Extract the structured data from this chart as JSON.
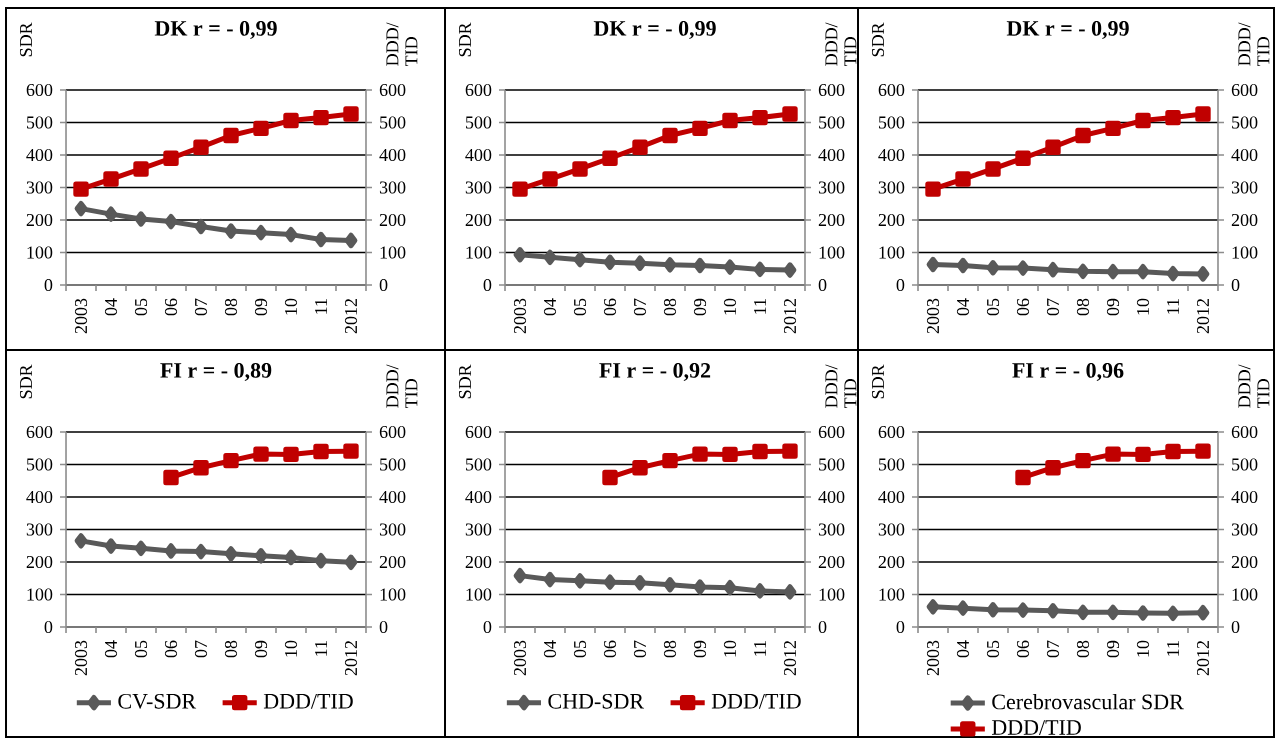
{
  "chart_data": [
    {
      "type": "line",
      "title": "DK  r = - 0,99",
      "ylabel": "SDR",
      "y2label": "DDD/ TID",
      "categories": [
        "2003",
        "04",
        "05",
        "06",
        "07",
        "08",
        "09",
        "10",
        "11",
        "2012"
      ],
      "ylim": [
        0,
        600
      ],
      "yticks": [
        0,
        100,
        200,
        300,
        400,
        500,
        600
      ],
      "y2lim": [
        0,
        600
      ],
      "y2ticks": [
        0,
        100,
        200,
        300,
        400,
        500,
        600
      ],
      "grid": "y",
      "series": [
        {
          "color": "#595959",
          "marker": "diamond",
          "values": [
            235,
            218,
            203,
            195,
            180,
            166,
            161,
            155,
            140,
            137
          ]
        },
        {
          "color": "#c00000",
          "marker": "square",
          "axis": "y2",
          "values": [
            295,
            326,
            357,
            390,
            424,
            460,
            482,
            506,
            515,
            526
          ]
        }
      ]
    },
    {
      "type": "line",
      "title": "DK r = - 0,99",
      "ylabel": "SDR",
      "y2label": "DDD/ TID",
      "categories": [
        "2003",
        "04",
        "05",
        "06",
        "07",
        "08",
        "09",
        "10",
        "11",
        "2012"
      ],
      "ylim": [
        0,
        600
      ],
      "yticks": [
        0,
        100,
        200,
        300,
        400,
        500,
        600
      ],
      "y2lim": [
        0,
        600
      ],
      "y2ticks": [
        0,
        100,
        200,
        300,
        400,
        500,
        600
      ],
      "grid": "y",
      "series": [
        {
          "color": "#595959",
          "marker": "diamond",
          "values": [
            93,
            85,
            78,
            70,
            67,
            62,
            60,
            55,
            48,
            46
          ]
        },
        {
          "color": "#c00000",
          "marker": "square",
          "axis": "y2",
          "values": [
            295,
            326,
            357,
            390,
            424,
            460,
            482,
            506,
            515,
            526
          ]
        }
      ]
    },
    {
      "type": "line",
      "title": "DK r = - 0,99",
      "ylabel": "SDR",
      "y2label": "DDD/ TID",
      "categories": [
        "2003",
        "04",
        "05",
        "06",
        "07",
        "08",
        "09",
        "10",
        "11",
        "2012"
      ],
      "ylim": [
        0,
        600
      ],
      "yticks": [
        0,
        100,
        200,
        300,
        400,
        500,
        600
      ],
      "y2lim": [
        0,
        600
      ],
      "y2ticks": [
        0,
        100,
        200,
        300,
        400,
        500,
        600
      ],
      "grid": "y",
      "series": [
        {
          "color": "#595959",
          "marker": "diamond",
          "values": [
            63,
            60,
            53,
            52,
            47,
            42,
            41,
            41,
            35,
            34
          ]
        },
        {
          "color": "#c00000",
          "marker": "square",
          "axis": "y2",
          "values": [
            295,
            326,
            357,
            390,
            424,
            460,
            482,
            506,
            515,
            526
          ]
        }
      ]
    },
    {
      "type": "line",
      "title": "FI r = - 0,89",
      "ylabel": "SDR",
      "y2label": "DDD/ TID",
      "categories": [
        "2003",
        "04",
        "05",
        "06",
        "07",
        "08",
        "09",
        "10",
        "11",
        "2012"
      ],
      "ylim": [
        0,
        600
      ],
      "yticks": [
        0,
        100,
        200,
        300,
        400,
        500,
        600
      ],
      "y2lim": [
        0,
        600
      ],
      "y2ticks": [
        0,
        100,
        200,
        300,
        400,
        500,
        600
      ],
      "grid": "y",
      "legend": "bottom",
      "series": [
        {
          "name": "CV-SDR",
          "color": "#595959",
          "marker": "diamond",
          "values": [
            265,
            249,
            242,
            234,
            232,
            225,
            219,
            214,
            204,
            199
          ]
        },
        {
          "name": "DDD/TID",
          "color": "#c00000",
          "marker": "square",
          "axis": "y2",
          "values": [
            null,
            null,
            null,
            460,
            490,
            512,
            532,
            531,
            540,
            541
          ]
        }
      ]
    },
    {
      "type": "line",
      "title": "FI  r = - 0,92",
      "ylabel": "SDR",
      "y2label": "DDD/ TID",
      "categories": [
        "2003",
        "04",
        "05",
        "06",
        "07",
        "08",
        "09",
        "10",
        "11",
        "2012"
      ],
      "ylim": [
        0,
        600
      ],
      "yticks": [
        0,
        100,
        200,
        300,
        400,
        500,
        600
      ],
      "y2lim": [
        0,
        600
      ],
      "y2ticks": [
        0,
        100,
        200,
        300,
        400,
        500,
        600
      ],
      "grid": "y",
      "legend": "bottom",
      "series": [
        {
          "name": "CHD-SDR",
          "color": "#595959",
          "marker": "diamond",
          "values": [
            158,
            146,
            142,
            138,
            136,
            130,
            123,
            121,
            111,
            108
          ]
        },
        {
          "name": "DDD/TID",
          "color": "#c00000",
          "marker": "square",
          "axis": "y2",
          "values": [
            null,
            null,
            null,
            460,
            490,
            512,
            532,
            531,
            540,
            541
          ]
        }
      ]
    },
    {
      "type": "line",
      "title": "FI  r = - 0,96",
      "ylabel": "SDR",
      "y2label": "DDD/ TID",
      "categories": [
        "2003",
        "04",
        "05",
        "06",
        "07",
        "08",
        "09",
        "10",
        "11",
        "2012"
      ],
      "ylim": [
        0,
        600
      ],
      "yticks": [
        0,
        100,
        200,
        300,
        400,
        500,
        600
      ],
      "y2lim": [
        0,
        600
      ],
      "y2ticks": [
        0,
        100,
        200,
        300,
        400,
        500,
        600
      ],
      "grid": "y",
      "legend": "bottom",
      "series": [
        {
          "name": "Cerebrovascular SDR",
          "color": "#595959",
          "marker": "diamond",
          "values": [
            62,
            58,
            53,
            52,
            50,
            45,
            45,
            43,
            42,
            44
          ]
        },
        {
          "name": "DDD/TID",
          "color": "#c00000",
          "marker": "square",
          "axis": "y2",
          "values": [
            null,
            null,
            null,
            460,
            490,
            512,
            532,
            531,
            540,
            541
          ]
        }
      ]
    }
  ]
}
